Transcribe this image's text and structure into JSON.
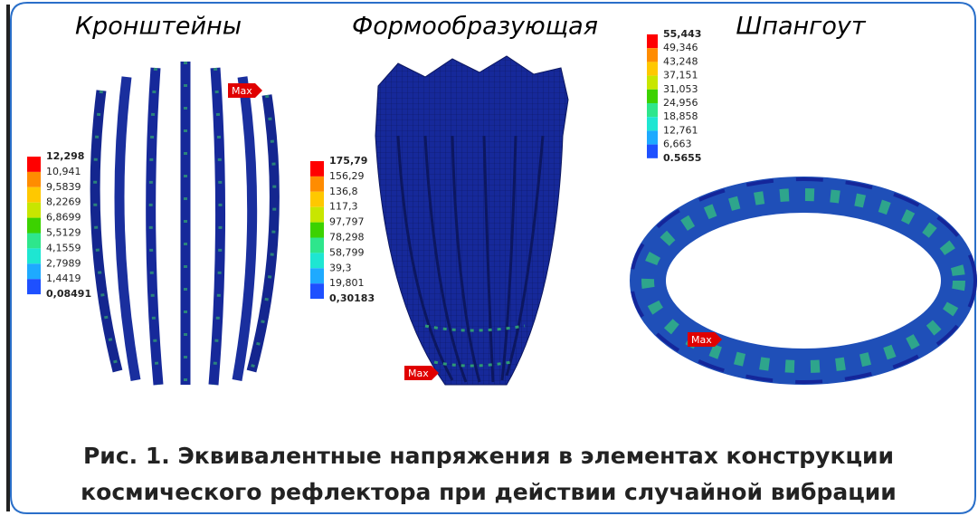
{
  "panels": [
    {
      "title": "Кронштейны",
      "legend": [
        "12,298",
        "10,941",
        "9,5839",
        "8,2269",
        "6,8699",
        "5,5129",
        "4,1559",
        "2,7989",
        "1,4419",
        "0,08491"
      ],
      "max_label": "Max"
    },
    {
      "title": "Формообразующая",
      "legend": [
        "175,79",
        "156,29",
        "136,8",
        "117,3",
        "97,797",
        "78,298",
        "58,799",
        "39,3",
        "19,801",
        "0,30183"
      ],
      "max_label": "Max"
    },
    {
      "title": "Шпангоут",
      "legend": [
        "55,443",
        "49,346",
        "43,248",
        "37,151",
        "31,053",
        "24,956",
        "18,858",
        "12,761",
        "6,663",
        "0,5655"
      ],
      "max_label": "Max"
    }
  ],
  "caption": [
    "Рис. 1. Эквивалентные напряжения в элементах конструкции",
    "космического рефлектора при действии случайной вибрации"
  ]
}
